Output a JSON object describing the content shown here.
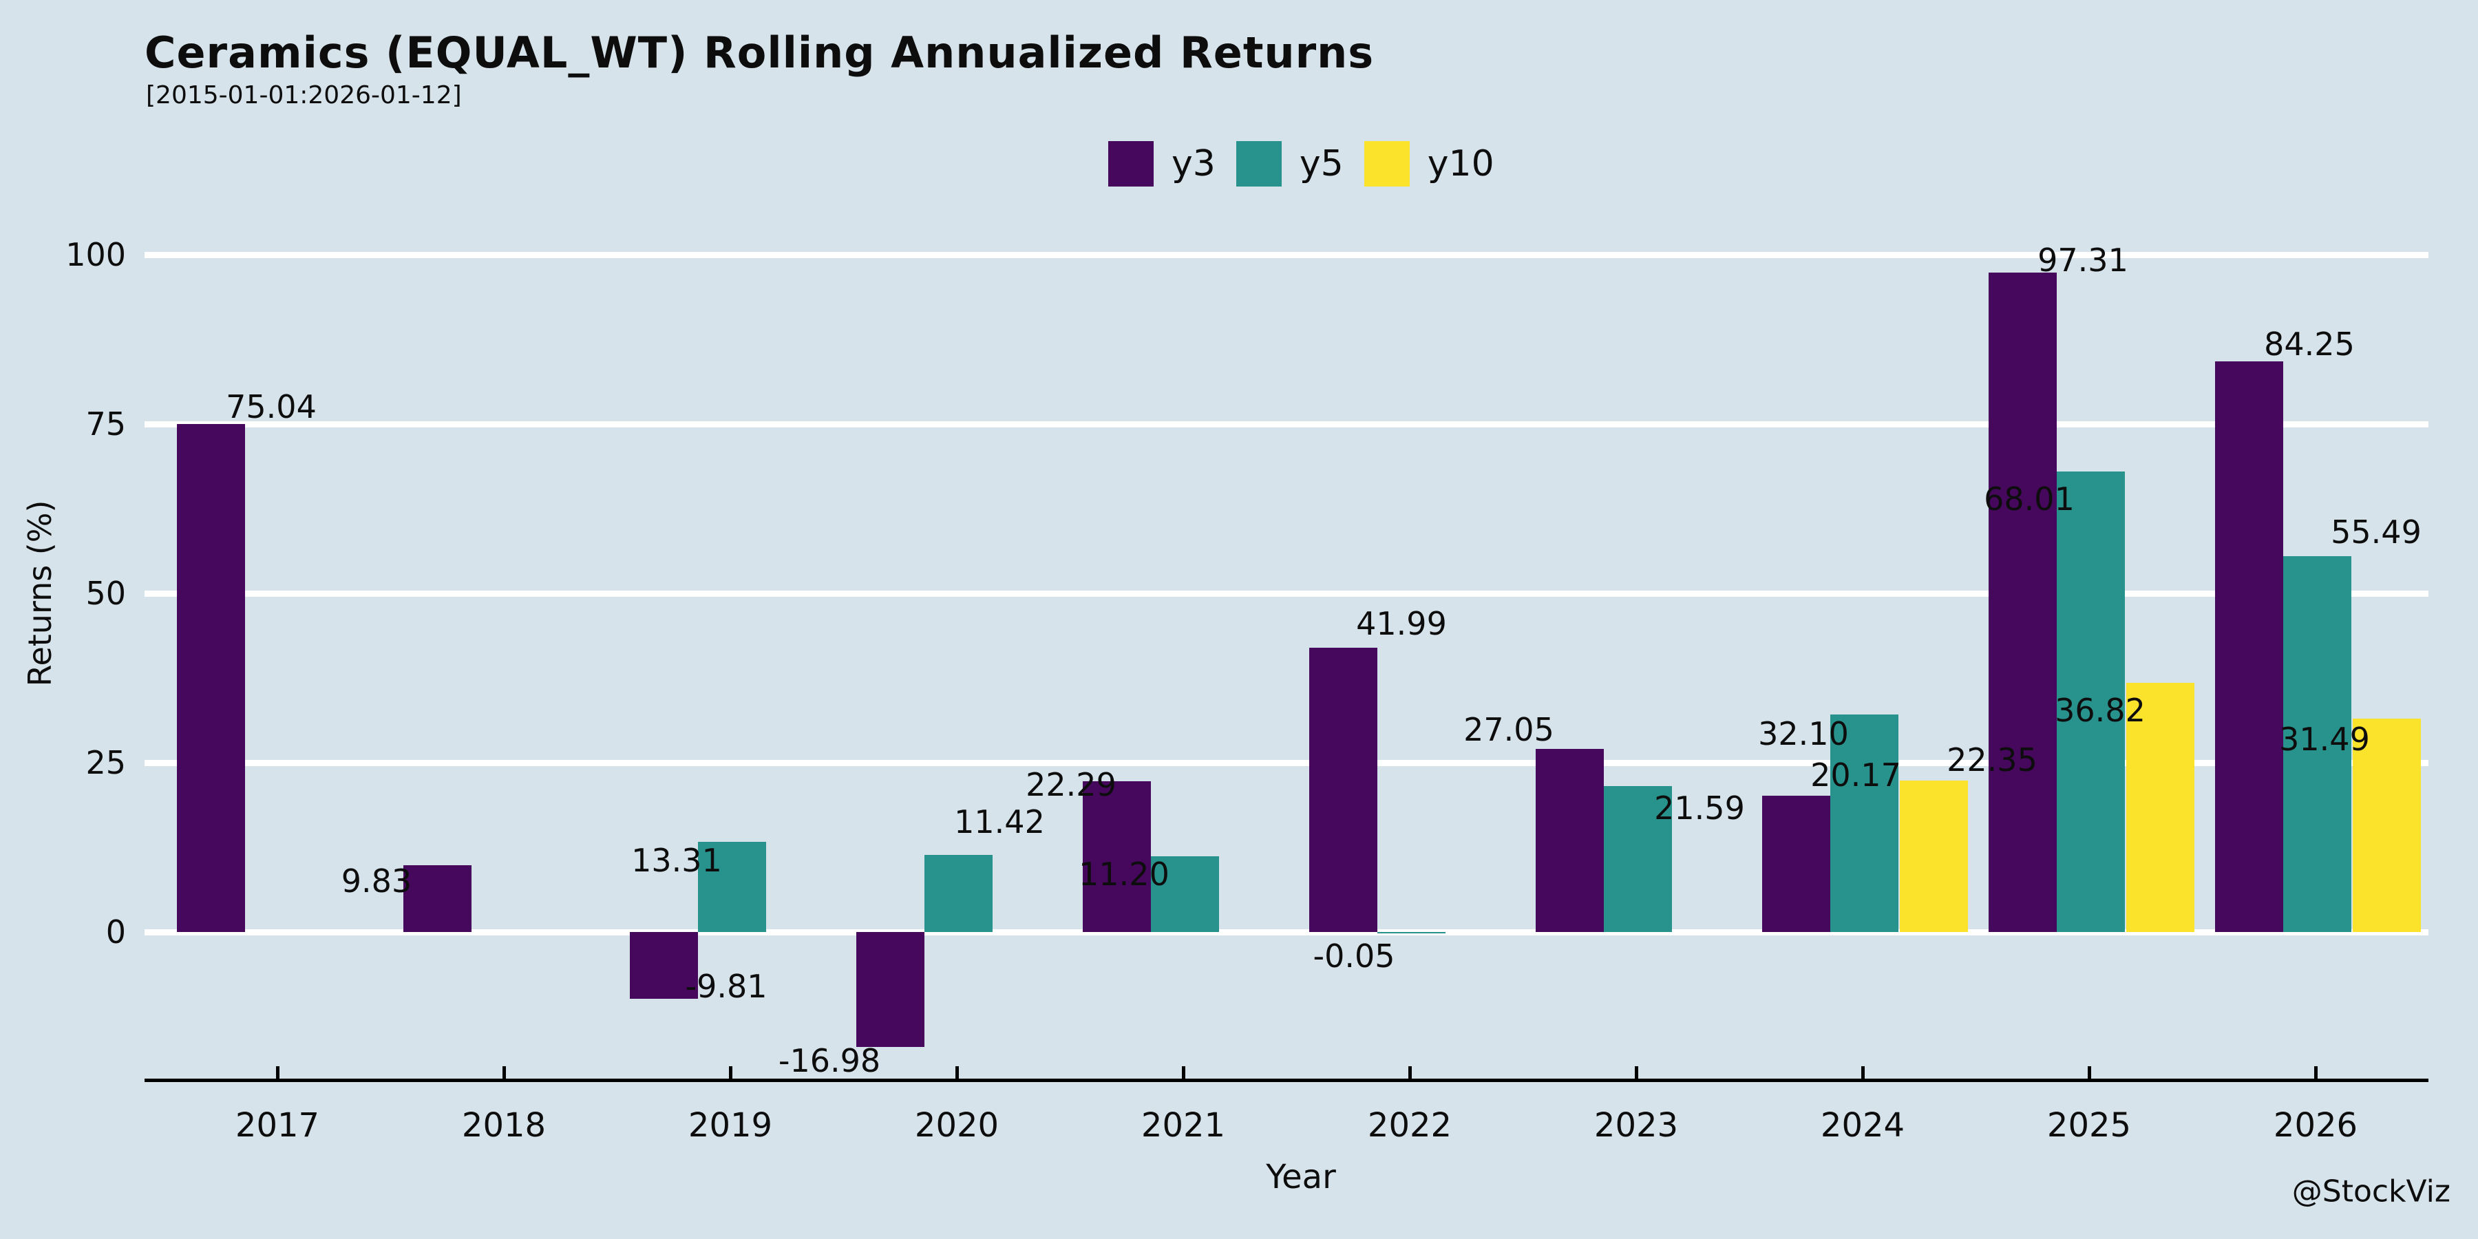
{
  "header": {
    "title": "Ceramics (EQUAL_WT) Rolling Annualized Returns",
    "subtitle": "[2015-01-01:2026-01-12]"
  },
  "watermark": "@StockViz",
  "colors": {
    "background": "#d6e3ea",
    "grid": "#ffffff",
    "axis": "#000000",
    "text": "#0d0d0d",
    "series_y3": "#45085c",
    "series_y5": "#28938d",
    "series_y10": "#fce32b"
  },
  "chart_data": {
    "type": "bar",
    "title": "Ceramics (EQUAL_WT) Rolling Annualized Returns",
    "subtitle": "[2015-01-01:2026-01-12]",
    "xlabel": "Year",
    "ylabel": "Returns (%)",
    "legend_position": "top-center",
    "grid": true,
    "ylim": [
      -22.5,
      101.5
    ],
    "yticks": [
      {
        "value": 0,
        "label": "0"
      },
      {
        "value": 25,
        "label": "25"
      },
      {
        "value": 50,
        "label": "50"
      },
      {
        "value": 75,
        "label": "75"
      },
      {
        "value": 100,
        "label": "100"
      }
    ],
    "categories": [
      "2017",
      "2018",
      "2019",
      "2020",
      "2021",
      "2022",
      "2023",
      "2024",
      "2025",
      "2026"
    ],
    "series": [
      {
        "name": "y3",
        "color": "#45085c",
        "points": [
          {
            "year": "2017",
            "value": 75.04,
            "label": "75.04",
            "dx": 88,
            "dy": -25
          },
          {
            "year": "2018",
            "value": 9.83,
            "label": "9.83",
            "dx": -88,
            "dy": 23
          },
          {
            "year": "2019",
            "value": -9.81,
            "label": "-9.81",
            "dx": 91,
            "dy": -18
          },
          {
            "year": "2020",
            "value": -16.98,
            "label": "-16.98",
            "dx": -88,
            "dy": 20
          },
          {
            "year": "2021",
            "value": 22.29,
            "label": "22.29",
            "dx": -66,
            "dy": 5
          },
          {
            "year": "2022",
            "value": 41.99,
            "label": "41.99",
            "dx": 85,
            "dy": -35
          },
          {
            "year": "2023",
            "value": 27.05,
            "label": "27.05",
            "dx": -88,
            "dy": -28
          },
          {
            "year": "2024",
            "value": 20.17,
            "label": "20.17",
            "dx": 87,
            "dy": -30
          },
          {
            "year": "2025",
            "value": 97.31,
            "label": "97.31",
            "dx": 88,
            "dy": -18
          },
          {
            "year": "2026",
            "value": 84.25,
            "label": "84.25",
            "dx": 88,
            "dy": -25
          }
        ]
      },
      {
        "name": "y5",
        "color": "#28938d",
        "points": [
          {
            "year": "2019",
            "value": 13.31,
            "label": "13.31",
            "dx": -80,
            "dy": 27
          },
          {
            "year": "2020",
            "value": 11.42,
            "label": "11.42",
            "dx": 60,
            "dy": -48
          },
          {
            "year": "2021",
            "value": 11.2,
            "label": "11.20",
            "dx": -88,
            "dy": 26
          },
          {
            "year": "2022",
            "value": -0.05,
            "label": "-0.05",
            "dx": -83,
            "dy": 35
          },
          {
            "year": "2023",
            "value": 21.59,
            "label": "21.59",
            "dx": 90,
            "dy": 32
          },
          {
            "year": "2024",
            "value": 32.1,
            "label": "32.10",
            "dx": -88,
            "dy": 28
          },
          {
            "year": "2025",
            "value": 68.01,
            "label": "68.01",
            "dx": -89,
            "dy": 40
          },
          {
            "year": "2026",
            "value": 55.49,
            "label": "55.49",
            "dx": 86,
            "dy": -35
          }
        ]
      },
      {
        "name": "y10",
        "color": "#fce32b",
        "points": [
          {
            "year": "2024",
            "value": 22.35,
            "label": "22.35",
            "dx": 85,
            "dy": -30
          },
          {
            "year": "2025",
            "value": 36.82,
            "label": "36.82",
            "dx": -87,
            "dy": 40
          },
          {
            "year": "2026",
            "value": 31.49,
            "label": "31.49",
            "dx": -90,
            "dy": 30
          }
        ]
      }
    ]
  }
}
